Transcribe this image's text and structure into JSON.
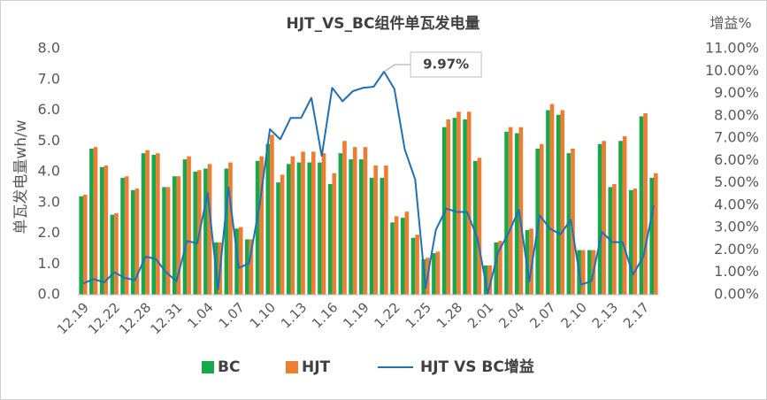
{
  "chart_data": {
    "type": "bar",
    "title": "HJT_VS_BC组件单瓦发电量",
    "y_label": "单瓦发电量wh/w",
    "y2_label": "增益%",
    "legend": "bottom",
    "categories": [
      "12.19",
      null,
      null,
      "12.22",
      null,
      null,
      "12.28",
      null,
      null,
      "12.31",
      null,
      null,
      "1.04",
      null,
      null,
      "1.07",
      null,
      null,
      "1.10",
      null,
      null,
      "1.13",
      null,
      null,
      "1.16",
      null,
      null,
      "1.19",
      null,
      null,
      "1.22",
      null,
      null,
      "1.25",
      null,
      null,
      "1.28",
      null,
      null,
      "2.01",
      null,
      null,
      "2.04",
      null,
      null,
      "2.07",
      null,
      null,
      "2.10",
      null,
      null,
      "2.13",
      null,
      null,
      "2.17",
      null
    ],
    "series": [
      {
        "name": "BC",
        "color": "#1aa64a",
        "values": [
          3.2,
          4.75,
          4.15,
          2.6,
          3.8,
          3.4,
          4.6,
          4.55,
          3.5,
          3.85,
          4.4,
          4.0,
          4.1,
          1.7,
          4.1,
          2.15,
          1.8,
          4.35,
          4.9,
          3.65,
          4.25,
          4.3,
          4.3,
          4.3,
          3.6,
          4.6,
          4.4,
          4.4,
          3.8,
          3.8,
          2.35,
          2.5,
          1.85,
          1.15,
          1.35,
          5.45,
          5.75,
          5.7,
          4.35,
          0.95,
          1.7,
          5.3,
          5.25,
          2.1,
          4.75,
          6.0,
          5.85,
          4.6,
          1.45,
          1.45,
          4.9,
          3.5,
          5.0,
          3.4,
          5.8,
          3.8
        ]
      },
      {
        "name": "HJT",
        "color": "#ed7d31",
        "values": [
          3.25,
          4.8,
          4.2,
          2.65,
          3.85,
          3.45,
          4.7,
          4.6,
          3.5,
          3.85,
          4.5,
          4.05,
          4.25,
          1.7,
          4.3,
          2.2,
          1.8,
          4.5,
          5.2,
          3.9,
          4.5,
          4.65,
          4.65,
          4.6,
          3.95,
          5.0,
          4.8,
          4.8,
          4.2,
          4.2,
          2.55,
          2.7,
          1.95,
          1.2,
          1.4,
          5.7,
          5.95,
          5.95,
          4.45,
          0.95,
          1.75,
          5.45,
          5.45,
          2.15,
          4.9,
          6.2,
          6.0,
          4.75,
          1.45,
          1.45,
          5.0,
          3.6,
          5.15,
          3.45,
          5.9,
          3.95
        ]
      },
      {
        "name": "HJT VS BC增益",
        "color": "#1f70b8",
        "type": "line",
        "axis": "y2",
        "values": [
          0.5,
          0.7,
          0.55,
          1.0,
          0.75,
          0.65,
          1.7,
          1.6,
          1.0,
          0.6,
          2.4,
          2.3,
          4.55,
          0.25,
          4.8,
          1.2,
          1.4,
          4.0,
          7.4,
          6.95,
          7.9,
          7.9,
          8.8,
          6.2,
          9.25,
          8.65,
          9.1,
          9.25,
          9.3,
          9.97,
          9.2,
          6.5,
          5.15,
          0.3,
          2.9,
          3.85,
          3.7,
          3.7,
          2.55,
          0.05,
          1.9,
          2.75,
          3.8,
          0.6,
          3.55,
          2.95,
          2.7,
          3.35,
          0.45,
          0.6,
          2.8,
          2.35,
          2.35,
          0.9,
          1.7,
          4.0
        ],
        "value_labels": [
          null,
          null,
          null,
          null,
          null,
          null,
          null,
          null,
          null,
          null,
          null,
          null,
          null,
          null,
          null,
          null,
          null,
          null,
          null,
          null,
          null,
          null,
          null,
          null,
          null,
          null,
          null,
          null,
          null,
          "9.97%",
          null,
          null,
          null,
          null,
          null,
          null,
          null,
          null,
          null,
          null,
          null,
          null,
          null,
          null,
          null,
          null,
          null,
          null,
          null,
          null,
          null,
          null,
          null,
          null,
          null,
          null
        ]
      }
    ],
    "ylim": [
      0,
      8
    ],
    "yticks": [
      {
        "value": 0,
        "label": "0.0"
      },
      {
        "value": 1,
        "label": "1.0"
      },
      {
        "value": 2,
        "label": "2.0"
      },
      {
        "value": 3,
        "label": "3.0"
      },
      {
        "value": 4,
        "label": "4.0"
      },
      {
        "value": 5,
        "label": "5.0"
      },
      {
        "value": 6,
        "label": "6.0"
      },
      {
        "value": 7,
        "label": "7.0"
      },
      {
        "value": 8,
        "label": "8.0"
      }
    ],
    "y2lim": [
      0,
      11
    ],
    "y2ticks": [
      {
        "value": 0,
        "label": "0.00%"
      },
      {
        "value": 1,
        "label": "1.00%"
      },
      {
        "value": 2,
        "label": "2.00%"
      },
      {
        "value": 3,
        "label": "3.00%"
      },
      {
        "value": 4,
        "label": "4.00%"
      },
      {
        "value": 5,
        "label": "5.00%"
      },
      {
        "value": 6,
        "label": "6.00%"
      },
      {
        "value": 7,
        "label": "7.00%"
      },
      {
        "value": 8,
        "label": "8.00%"
      },
      {
        "value": 9,
        "label": "9.00%"
      },
      {
        "value": 10,
        "label": "10.00%"
      },
      {
        "value": 11,
        "label": "11.00%"
      }
    ],
    "grid": false
  }
}
